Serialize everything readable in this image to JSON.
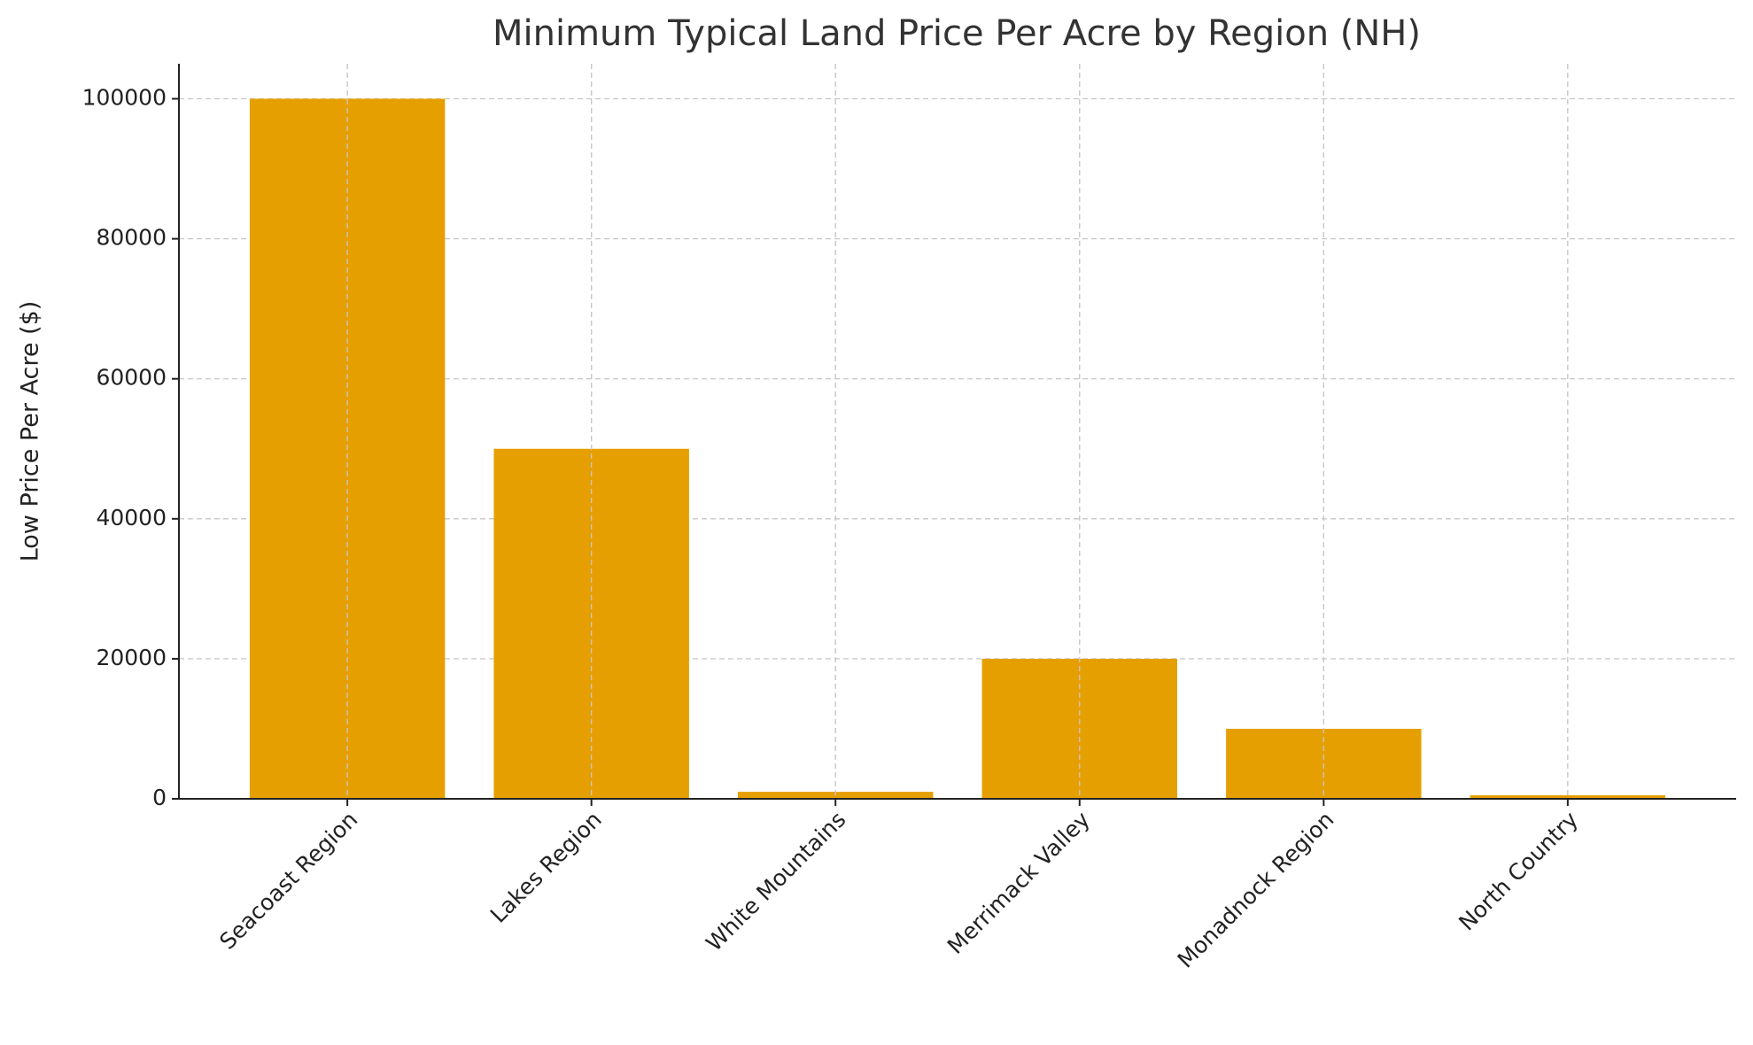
{
  "chart_data": {
    "type": "bar",
    "title": "Minimum Typical Land Price Per Acre by Region (NH)",
    "y_label": "Low Price Per Acre ($)",
    "categories": [
      "Seacoast Region",
      "Lakes Region",
      "White Mountains",
      "Merrimack Valley",
      "Monadnock Region",
      "North Country"
    ],
    "values": [
      100000,
      50000,
      1000,
      20000,
      10000,
      500
    ],
    "color": "#e69f00",
    "ylim": [
      0,
      105000
    ],
    "yticks": [
      0,
      20000,
      40000,
      60000,
      80000,
      100000
    ],
    "grid": true
  }
}
